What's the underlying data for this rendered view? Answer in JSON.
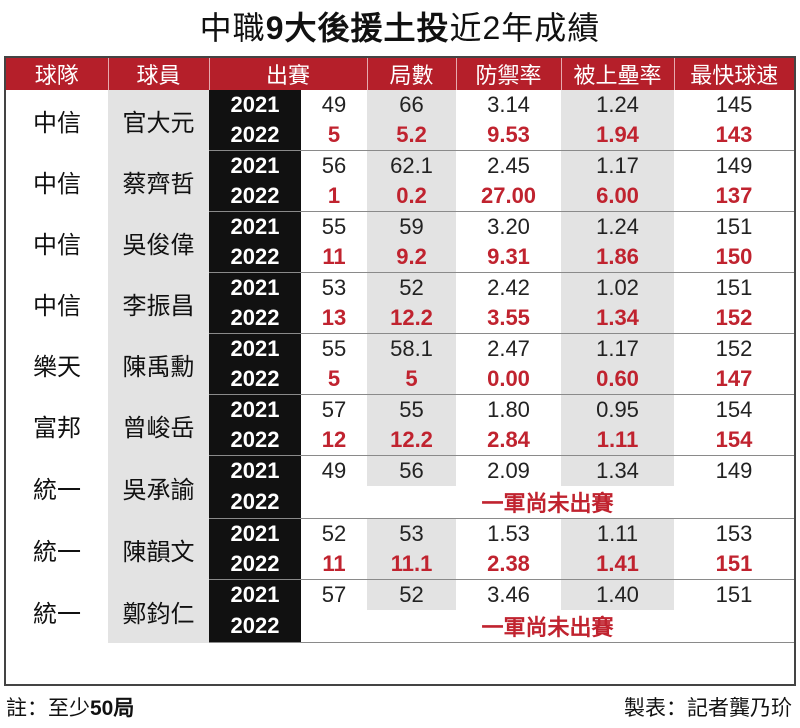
{
  "title": {
    "part1": "中職",
    "part2": "9大後援土投",
    "part3": "近2年成績"
  },
  "headers": [
    "球隊",
    "球員",
    "出賽",
    "局數",
    "防禦率",
    "被上壘率",
    "最快球速"
  ],
  "rows": [
    {
      "team": "中信",
      "player": "官大元",
      "y2021": {
        "year": "2021",
        "g": "49",
        "ip": "66",
        "era": "3.14",
        "whip": "1.24",
        "spd": "145"
      },
      "y2022": {
        "year": "2022",
        "g": "5",
        "ip": "5.2",
        "era": "9.53",
        "whip": "1.94",
        "spd": "143"
      }
    },
    {
      "team": "中信",
      "player": "蔡齊哲",
      "y2021": {
        "year": "2021",
        "g": "56",
        "ip": "62.1",
        "era": "2.45",
        "whip": "1.17",
        "spd": "149"
      },
      "y2022": {
        "year": "2022",
        "g": "1",
        "ip": "0.2",
        "era": "27.00",
        "whip": "6.00",
        "spd": "137"
      }
    },
    {
      "team": "中信",
      "player": "吳俊偉",
      "y2021": {
        "year": "2021",
        "g": "55",
        "ip": "59",
        "era": "3.20",
        "whip": "1.24",
        "spd": "151"
      },
      "y2022": {
        "year": "2022",
        "g": "11",
        "ip": "9.2",
        "era": "9.31",
        "whip": "1.86",
        "spd": "150"
      }
    },
    {
      "team": "中信",
      "player": "李振昌",
      "y2021": {
        "year": "2021",
        "g": "53",
        "ip": "52",
        "era": "2.42",
        "whip": "1.02",
        "spd": "151"
      },
      "y2022": {
        "year": "2022",
        "g": "13",
        "ip": "12.2",
        "era": "3.55",
        "whip": "1.34",
        "spd": "152"
      }
    },
    {
      "team": "樂天",
      "player": "陳禹勳",
      "y2021": {
        "year": "2021",
        "g": "55",
        "ip": "58.1",
        "era": "2.47",
        "whip": "1.17",
        "spd": "152"
      },
      "y2022": {
        "year": "2022",
        "g": "5",
        "ip": "5",
        "era": "0.00",
        "whip": "0.60",
        "spd": "147"
      }
    },
    {
      "team": "富邦",
      "player": "曾峻岳",
      "y2021": {
        "year": "2021",
        "g": "57",
        "ip": "55",
        "era": "1.80",
        "whip": "0.95",
        "spd": "154"
      },
      "y2022": {
        "year": "2022",
        "g": "12",
        "ip": "12.2",
        "era": "2.84",
        "whip": "1.11",
        "spd": "154"
      }
    },
    {
      "team": "統一",
      "player": "吳承諭",
      "y2021": {
        "year": "2021",
        "g": "49",
        "ip": "56",
        "era": "2.09",
        "whip": "1.34",
        "spd": "149"
      },
      "y2022": {
        "year": "2022",
        "na": "一軍尚未出賽"
      }
    },
    {
      "team": "統一",
      "player": "陳韻文",
      "y2021": {
        "year": "2021",
        "g": "52",
        "ip": "53",
        "era": "1.53",
        "whip": "1.11",
        "spd": "153"
      },
      "y2022": {
        "year": "2022",
        "g": "11",
        "ip": "11.1",
        "era": "2.38",
        "whip": "1.41",
        "spd": "151"
      }
    },
    {
      "team": "統一",
      "player": "鄭鈞仁",
      "y2021": {
        "year": "2021",
        "g": "57",
        "ip": "52",
        "era": "3.46",
        "whip": "1.40",
        "spd": "151"
      },
      "y2022": {
        "year": "2022",
        "na": "一軍尚未出賽"
      }
    }
  ],
  "footer": {
    "note_prefix": "註：至少",
    "note_bold": "50局",
    "credit": "製表：記者龔乃玠"
  },
  "colors": {
    "accent": "#b51f2a",
    "highlight": "#c0232f",
    "year_bg": "#111111",
    "shade": "#e3e3e3"
  }
}
